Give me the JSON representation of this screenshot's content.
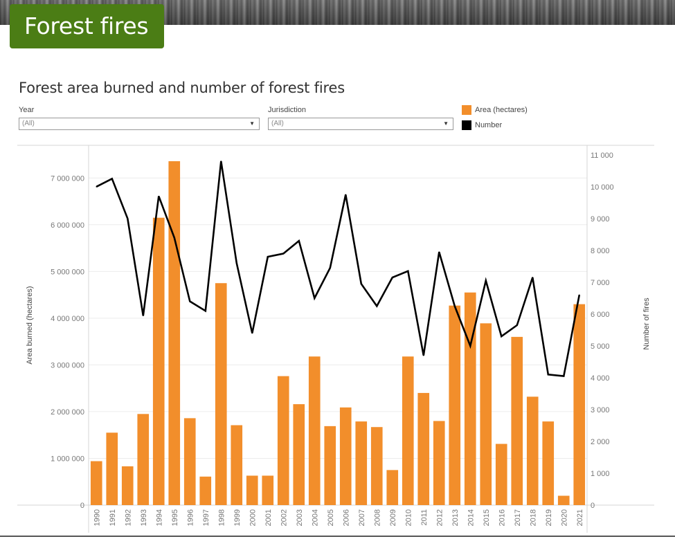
{
  "header": {
    "title": "Forest fires"
  },
  "chart_title": "Forest area burned and number of forest fires",
  "filters": {
    "year": {
      "label": "Year",
      "value": "(All)"
    },
    "jurisdiction": {
      "label": "Jurisdiction",
      "value": "(All)"
    }
  },
  "legend": [
    {
      "label": "Area (hectares)",
      "color": "#f28e2b"
    },
    {
      "label": "Number",
      "color": "#000000"
    }
  ],
  "chart_data": {
    "type": "bar",
    "categories": [
      "1990",
      "1991",
      "1992",
      "1993",
      "1994",
      "1995",
      "1996",
      "1997",
      "1998",
      "1999",
      "2000",
      "2001",
      "2002",
      "2003",
      "2004",
      "2005",
      "2006",
      "2007",
      "2008",
      "2009",
      "2010",
      "2011",
      "2012",
      "2013",
      "2014",
      "2015",
      "2016",
      "2017",
      "2018",
      "2019",
      "2020",
      "2021"
    ],
    "series": [
      {
        "name": "Area (hectares)",
        "type": "bar",
        "axis": "left",
        "color": "#f28e2b",
        "values": [
          940000,
          1550000,
          830000,
          1950000,
          6150000,
          7360000,
          1860000,
          610000,
          4750000,
          1710000,
          630000,
          630000,
          2760000,
          2160000,
          3180000,
          1690000,
          2090000,
          1790000,
          1670000,
          750000,
          3180000,
          2400000,
          1800000,
          4270000,
          4550000,
          3890000,
          1310000,
          3600000,
          2320000,
          1790000,
          200000,
          4300000
        ]
      },
      {
        "name": "Number",
        "type": "line",
        "axis": "right",
        "color": "#000000",
        "values": [
          10000,
          10250,
          9000,
          5950,
          9700,
          8400,
          6400,
          6100,
          10800,
          7600,
          5400,
          7800,
          7900,
          8300,
          6500,
          7450,
          9750,
          6950,
          6250,
          7150,
          7350,
          4700,
          7950,
          6250,
          5000,
          7050,
          5300,
          5650,
          7150,
          4100,
          4050,
          6600
        ]
      }
    ],
    "xlabel": "",
    "ylabel": "Area burned (hectares)",
    "y2label": "Number of fires",
    "ylim": [
      0,
      7700000
    ],
    "y2lim": [
      0,
      11300
    ],
    "yticks": [
      0,
      1000000,
      2000000,
      3000000,
      4000000,
      5000000,
      6000000,
      7000000
    ],
    "ytick_labels": [
      "0",
      "1 000 000",
      "2 000 000",
      "3 000 000",
      "4 000 000",
      "5 000 000",
      "6 000 000",
      "7 000 000"
    ],
    "y2ticks": [
      0,
      1000,
      2000,
      3000,
      4000,
      5000,
      6000,
      7000,
      8000,
      9000,
      10000,
      11000
    ],
    "y2tick_labels": [
      "0",
      "1 000",
      "2 000",
      "3 000",
      "4 000",
      "5 000",
      "6 000",
      "7 000",
      "8 000",
      "9 000",
      "10 000",
      "11 000"
    ],
    "grid": true,
    "legend_position": "top-right"
  }
}
